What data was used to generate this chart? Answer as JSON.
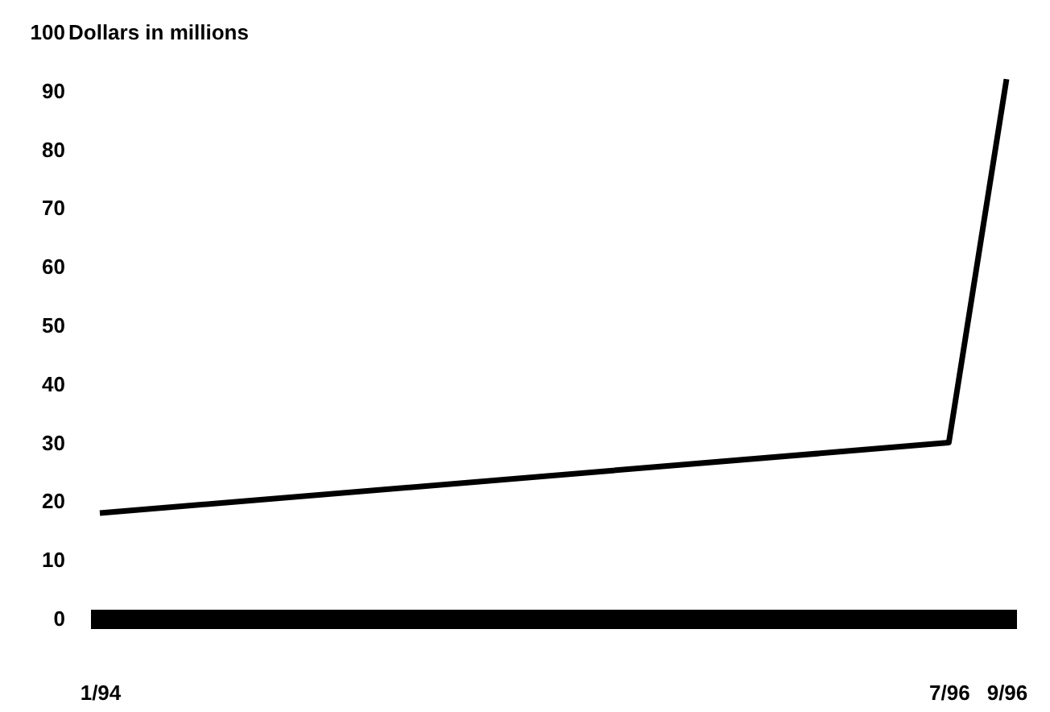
{
  "chart_data": {
    "type": "line",
    "ylabel": "Dollars in millions",
    "x": [
      "1994-01",
      "1996-07",
      "1996-09"
    ],
    "values": [
      18,
      30,
      92
    ],
    "color": "#000000",
    "xlim": [
      "1994-01",
      "1996-09"
    ],
    "xticks": [
      {
        "value": "1994-01",
        "label": "1/94"
      },
      {
        "value": "1996-07",
        "label": "7/96"
      },
      {
        "value": "1996-09",
        "label": "9/96"
      }
    ],
    "ylim": [
      0,
      100
    ],
    "yticks": [
      0,
      10,
      20,
      30,
      40,
      50,
      60,
      70,
      80,
      90,
      100
    ],
    "grid": false,
    "marker": "none",
    "line_style": "solid"
  }
}
